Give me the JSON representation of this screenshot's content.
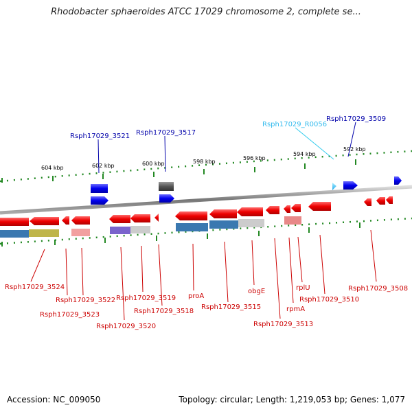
{
  "title": "Rhodobacter sphaeroides ATCC 17029 chromosome 2, complete se...",
  "footer": {
    "accession": "Accession: NC_009050",
    "summary": "Topology: circular; Length: 1,219,053 bp; Genes: 1,077"
  },
  "colors": {
    "forward_gene": "#0000ee",
    "reverse_gene": "#ee0000",
    "rna_gene": "#33ccff",
    "pseudo_gene": "#555555",
    "backbone": "#888888",
    "ticks": "#228822"
  },
  "scale_ticks": [
    "604 kbp",
    "602 kbp",
    "600 kbp",
    "598 kbp",
    "596 kbp",
    "594 kbp",
    "592 kbp"
  ],
  "top_labels": [
    "Rsph17029_3521",
    "Rsph17029_3517",
    "Rsph17029_R0056",
    "Rsph17029_3509"
  ],
  "bottom_labels": [
    "Rsph17029_3524",
    "Rsph17029_3522",
    "Rsph17029_3523",
    "Rsph17029_3519",
    "Rsph17029_3520",
    "Rsph17029_3518",
    "proA",
    "Rsph17029_3515",
    "obgE",
    "rpmA",
    "rplU",
    "Rsph17029_3513",
    "Rsph17029_3510",
    "Rsph17029_3508"
  ]
}
